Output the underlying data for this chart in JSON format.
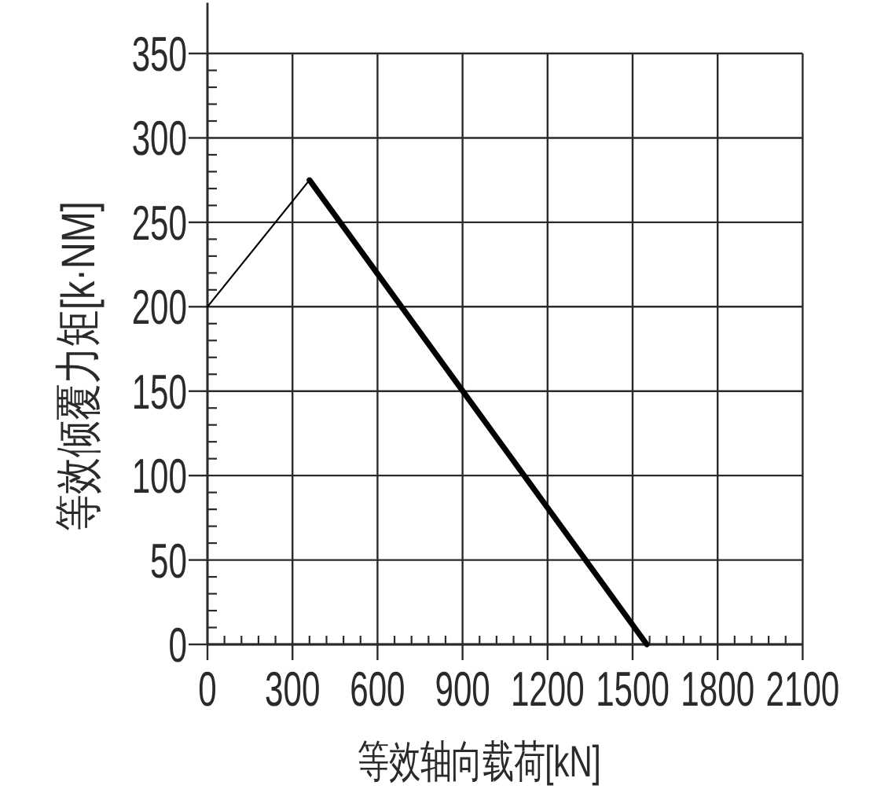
{
  "chart_data": {
    "type": "line",
    "xlabel": "等效轴向载荷[kN]",
    "ylabel": "等效倾覆力矩[k·NM]",
    "xlim": [
      0,
      2100
    ],
    "ylim": [
      0,
      380
    ],
    "xticks": [
      0,
      {
        "value": 60,
        "label": null
      },
      {
        "value": 120,
        "label": null
      },
      {
        "value": 180,
        "label": null
      },
      {
        "value": 240,
        "label": null
      },
      300,
      {
        "value": 360,
        "label": null
      },
      {
        "value": 420,
        "label": null
      },
      {
        "value": 480,
        "label": null
      },
      {
        "value": 540,
        "label": null
      },
      600,
      {
        "value": 660,
        "label": null
      },
      {
        "value": 720,
        "label": null
      },
      {
        "value": 780,
        "label": null
      },
      {
        "value": 840,
        "label": null
      },
      900,
      {
        "value": 960,
        "label": null
      },
      {
        "value": 1020,
        "label": null
      },
      {
        "value": 1080,
        "label": null
      },
      {
        "value": 1140,
        "label": null
      },
      1200,
      {
        "value": 1260,
        "label": null
      },
      {
        "value": 1320,
        "label": null
      },
      {
        "value": 1380,
        "label": null
      },
      {
        "value": 1440,
        "label": null
      },
      1500,
      {
        "value": 1560,
        "label": null
      },
      {
        "value": 1620,
        "label": null
      },
      {
        "value": 1680,
        "label": null
      },
      {
        "value": 1740,
        "label": null
      },
      1800,
      {
        "value": 1860,
        "label": null
      },
      {
        "value": 1920,
        "label": null
      },
      {
        "value": 1980,
        "label": null
      },
      {
        "value": 2040,
        "label": null
      },
      2100
    ],
    "yticks": [
      0,
      {
        "value": 10,
        "label": null
      },
      {
        "value": 20,
        "label": null
      },
      {
        "value": 30,
        "label": null
      },
      {
        "value": 40,
        "label": null
      },
      50,
      {
        "value": 60,
        "label": null
      },
      {
        "value": 70,
        "label": null
      },
      {
        "value": 80,
        "label": null
      },
      {
        "value": 90,
        "label": null
      },
      100,
      {
        "value": 110,
        "label": null
      },
      {
        "value": 120,
        "label": null
      },
      {
        "value": 130,
        "label": null
      },
      {
        "value": 140,
        "label": null
      },
      150,
      {
        "value": 160,
        "label": null
      },
      {
        "value": 170,
        "label": null
      },
      {
        "value": 180,
        "label": null
      },
      {
        "value": 190,
        "label": null
      },
      200,
      {
        "value": 210,
        "label": null
      },
      {
        "value": 220,
        "label": null
      },
      {
        "value": 230,
        "label": null
      },
      {
        "value": 240,
        "label": null
      },
      250,
      {
        "value": 260,
        "label": null
      },
      {
        "value": 270,
        "label": null
      },
      {
        "value": 280,
        "label": null
      },
      {
        "value": 290,
        "label": null
      },
      300,
      {
        "value": 310,
        "label": null
      },
      {
        "value": 320,
        "label": null
      },
      {
        "value": 330,
        "label": null
      },
      {
        "value": 340,
        "label": null
      },
      350
    ],
    "grid": true,
    "line_style": "solid",
    "series": [
      {
        "color": "#000000",
        "x": [
          0,
          360
        ],
        "values": [
          200,
          275
        ]
      },
      {
        "color": "#000000",
        "x": [
          360,
          1550
        ],
        "values": [
          275,
          0
        ]
      }
    ]
  }
}
